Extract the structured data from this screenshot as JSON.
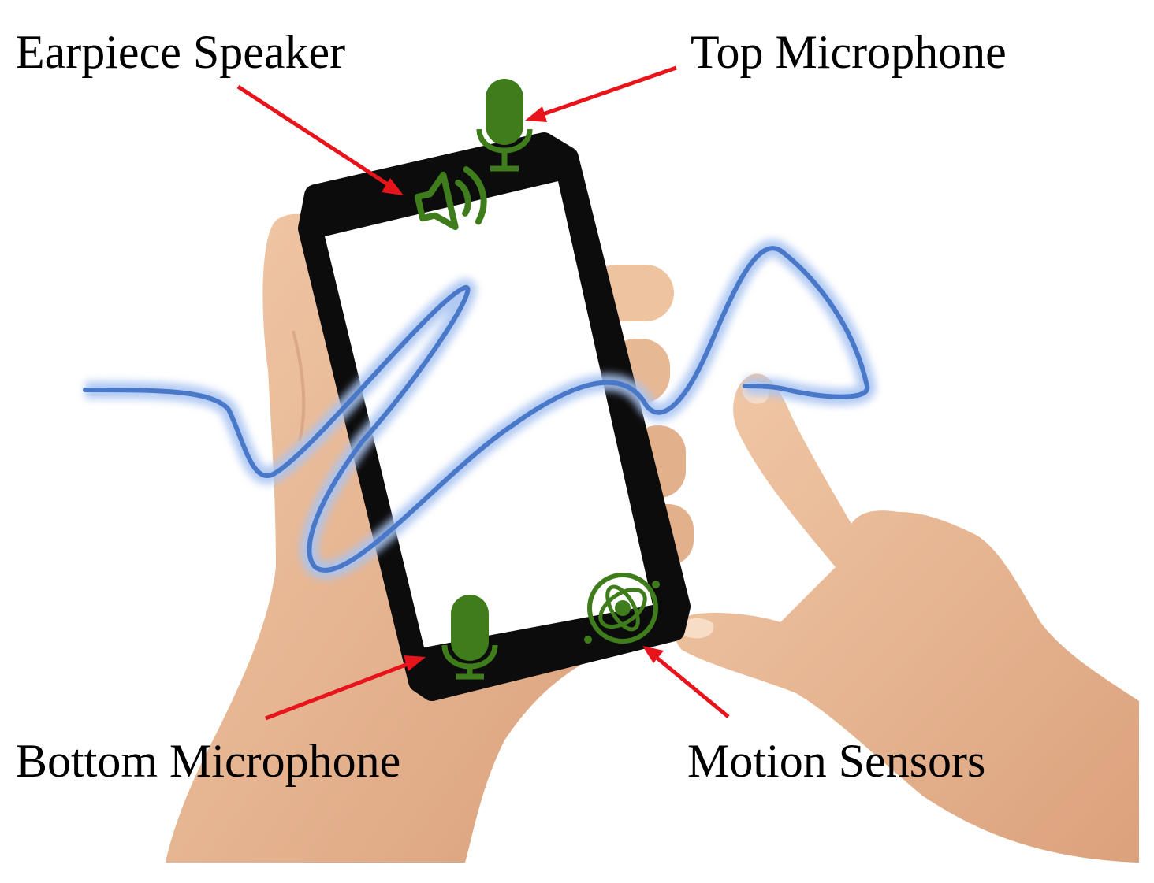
{
  "labels": {
    "earpiece_speaker": "Earpiece Speaker",
    "top_microphone": "Top Microphone",
    "bottom_microphone": "Bottom Microphone",
    "motion_sensors": "Motion Sensors"
  },
  "icons": {
    "speaker": "speaker-icon",
    "microphone": "microphone-icon",
    "motion": "motion-sensor-icon"
  },
  "colors": {
    "background": "#ffffff",
    "arrow": "#e8141c",
    "icon": "#3f7d1c",
    "wave": "#4a78c8",
    "wave_glow": "#a9c4f2",
    "phone_body": "#0c0c0c",
    "screen": "#ffffff",
    "skin": "#e9bb97",
    "skin_shadow": "#c99273",
    "label_text": "#000000"
  }
}
